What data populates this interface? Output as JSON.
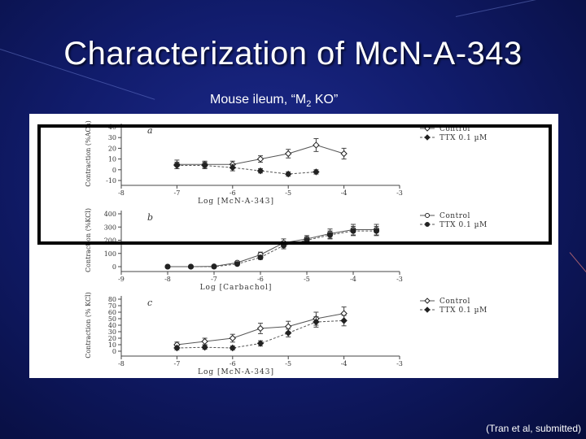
{
  "slide": {
    "title": "Characterization of McN-A-343",
    "subtitle_main": "Mouse ileum, “M",
    "subtitle_sub": "2",
    "subtitle_end": " KO”",
    "citation": "(Tran et al, submitted)",
    "colors": {
      "background": "#111c6c",
      "text": "#ffffff",
      "highlight_box": "#000000"
    }
  },
  "chart_data": [
    {
      "type": "line",
      "panel_label": "a",
      "xlabel": "Log [McN-A-343]",
      "ylabel": "Contraction (%ACh)",
      "xlim": [
        -8,
        -3
      ],
      "ylim": [
        -10,
        40
      ],
      "xticks": [
        "-8",
        "-7",
        "-6",
        "-5",
        "-4",
        "-3"
      ],
      "yticks": [
        "-10",
        "0",
        "10",
        "20",
        "30",
        "40"
      ],
      "series": [
        {
          "name": "Control",
          "marker": "open-diamond",
          "points": [
            [
              -7,
              5
            ],
            [
              -6.5,
              5
            ],
            [
              -6,
              5
            ],
            [
              -5.5,
              10
            ],
            [
              -5,
              15
            ],
            [
              -4.5,
              23
            ],
            [
              -4,
              15
            ]
          ],
          "err": [
            4,
            3,
            3,
            3,
            4,
            6,
            5
          ]
        },
        {
          "name": "TTX 0.1 µM",
          "marker": "filled-diamond",
          "points": [
            [
              -7,
              4
            ],
            [
              -6.5,
              4
            ],
            [
              -6,
              2
            ],
            [
              -5.5,
              -1
            ],
            [
              -5,
              -4
            ],
            [
              -4.5,
              -2
            ]
          ],
          "err": [
            3,
            3,
            3,
            2,
            2,
            2
          ]
        }
      ],
      "legend": "right"
    },
    {
      "type": "line",
      "panel_label": "b",
      "xlabel": "Log [Carbachol]",
      "ylabel": "Contraction (%KCl)",
      "xlim": [
        -9,
        -3
      ],
      "ylim": [
        0,
        400
      ],
      "xticks": [
        "-9",
        "-8",
        "-7",
        "-6",
        "-5",
        "-4",
        "-3"
      ],
      "yticks": [
        "0",
        "100",
        "200",
        "300",
        "400"
      ],
      "series": [
        {
          "name": "Control",
          "marker": "open-circle",
          "points": [
            [
              -8,
              0
            ],
            [
              -7.5,
              0
            ],
            [
              -7,
              2
            ],
            [
              -6.5,
              30
            ],
            [
              -6,
              90
            ],
            [
              -5.5,
              180
            ],
            [
              -5,
              210
            ],
            [
              -4.5,
              250
            ],
            [
              -4,
              280
            ],
            [
              -3.5,
              280
            ]
          ],
          "err": [
            0,
            0,
            5,
            10,
            20,
            30,
            25,
            35,
            40,
            40
          ]
        },
        {
          "name": "TTX 0.1 µM",
          "marker": "filled-circle",
          "points": [
            [
              -8,
              0
            ],
            [
              -7.5,
              0
            ],
            [
              -7,
              0
            ],
            [
              -6.5,
              20
            ],
            [
              -6,
              70
            ],
            [
              -5.5,
              160
            ],
            [
              -5,
              200
            ],
            [
              -4.5,
              240
            ],
            [
              -4,
              270
            ],
            [
              -3.5,
              270
            ]
          ],
          "err": [
            0,
            0,
            5,
            10,
            15,
            25,
            25,
            30,
            35,
            35
          ]
        }
      ],
      "legend": "right"
    },
    {
      "type": "line",
      "panel_label": "c",
      "xlabel": "Log [McN-A-343]",
      "ylabel": "Contraction (% KCl)",
      "xlim": [
        -8,
        -3
      ],
      "ylim": [
        0,
        80
      ],
      "xticks": [
        "-8",
        "-7",
        "-6",
        "-5",
        "-4",
        "-3"
      ],
      "yticks": [
        "0",
        "10",
        "20",
        "30",
        "40",
        "50",
        "60",
        "70",
        "80"
      ],
      "series": [
        {
          "name": "Control",
          "marker": "open-diamond",
          "points": [
            [
              -7,
              10
            ],
            [
              -6.5,
              15
            ],
            [
              -6,
              20
            ],
            [
              -5.5,
              35
            ],
            [
              -5,
              38
            ],
            [
              -4.5,
              50
            ],
            [
              -4,
              58
            ]
          ],
          "err": [
            4,
            5,
            6,
            8,
            8,
            10,
            10
          ]
        },
        {
          "name": "TTX 0.1 µM",
          "marker": "filled-diamond",
          "points": [
            [
              -7,
              5
            ],
            [
              -6.5,
              6
            ],
            [
              -6,
              5
            ],
            [
              -5.5,
              12
            ],
            [
              -5,
              28
            ],
            [
              -4.5,
              45
            ],
            [
              -4,
              47
            ]
          ],
          "err": [
            3,
            3,
            3,
            4,
            6,
            8,
            8
          ]
        }
      ],
      "legend": "right"
    }
  ]
}
